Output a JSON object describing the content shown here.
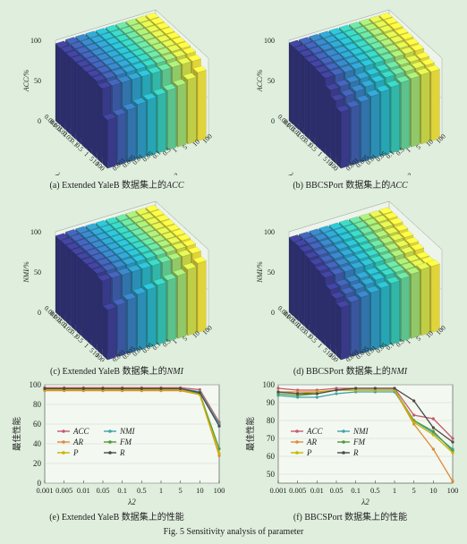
{
  "figure_caption": "Fig. 5    Sensitivity analysis of parameter",
  "panels_3d": [
    {
      "id": "a",
      "caption_prefix": "(a)  Extended YaleB 数据集上的",
      "caption_metric": "ACC",
      "zlabel": "ACC/%"
    },
    {
      "id": "b",
      "caption_prefix": "(b)  BBCSPort 数据集上的",
      "caption_metric": "ACC",
      "zlabel": "ACC/%"
    },
    {
      "id": "c",
      "caption_prefix": "(c)  Extended YaleB 数据集上的",
      "caption_metric": "NMI",
      "zlabel": "NMI/%"
    },
    {
      "id": "d",
      "caption_prefix": "(d)  BBCSPort 数据集上的",
      "caption_metric": "NMI",
      "zlabel": "NMI/%"
    }
  ],
  "panels_2d": [
    {
      "id": "e",
      "caption": "(e)  Extended YaleB 数据集上的性能"
    },
    {
      "id": "f",
      "caption": "(f)  BBCSPort 数据集上的性能"
    }
  ],
  "chart_data": [
    {
      "type": "bar3d",
      "panel": "a",
      "x_label": "λ1",
      "y_label": "λ2",
      "z_label": "ACC/%",
      "x_ticks": [
        "0.001",
        "0.005",
        "0.01",
        "0.05",
        "0.1",
        "0.5",
        "1",
        "5",
        "10",
        "100"
      ],
      "y_ticks": [
        "0.001",
        "0.005",
        "0.01",
        "0.05",
        "0.1",
        "0.5",
        "1",
        "5",
        "10",
        "100"
      ],
      "z_ticks": [
        "0",
        "50",
        "100"
      ],
      "zlim": [
        0,
        100
      ],
      "values": [
        [
          96,
          97,
          97,
          97,
          97,
          97,
          97,
          97,
          97,
          97
        ],
        [
          96,
          97,
          97,
          97,
          97,
          97,
          97,
          97,
          97,
          97
        ],
        [
          96,
          97,
          97,
          97,
          97,
          97,
          97,
          97,
          97,
          97
        ],
        [
          96,
          97,
          97,
          97,
          97,
          97,
          97,
          97,
          97,
          97
        ],
        [
          96,
          97,
          97,
          97,
          97,
          97,
          97,
          97,
          97,
          97
        ],
        [
          96,
          97,
          97,
          97,
          97,
          97,
          97,
          97,
          97,
          97
        ],
        [
          96,
          97,
          97,
          97,
          97,
          97,
          97,
          97,
          97,
          97
        ],
        [
          96,
          96,
          96,
          96,
          96,
          96,
          96,
          96,
          96,
          96
        ],
        [
          93,
          93,
          93,
          93,
          93,
          93,
          93,
          93,
          93,
          93
        ],
        [
          60,
          62,
          65,
          68,
          70,
          72,
          74,
          76,
          80,
          85
        ]
      ]
    },
    {
      "type": "bar3d",
      "panel": "b",
      "x_label": "λ1",
      "y_label": "λ2",
      "z_label": "ACC/%",
      "x_ticks": [
        "0.001",
        "0.005",
        "0.01",
        "0.05",
        "0.1",
        "0.5",
        "1",
        "5",
        "10",
        "100"
      ],
      "y_ticks": [
        "0.001",
        "0.005",
        "0.01",
        "0.05",
        "0.1",
        "0.5",
        "1",
        "5",
        "10",
        "100"
      ],
      "z_ticks": [
        "0",
        "50",
        "100"
      ],
      "zlim": [
        0,
        100
      ],
      "values": [
        [
          97,
          97,
          97,
          97,
          97,
          97,
          97,
          97,
          97,
          97
        ],
        [
          97,
          97,
          97,
          97,
          97,
          97,
          97,
          97,
          97,
          97
        ],
        [
          97,
          97,
          97,
          97,
          97,
          97,
          97,
          97,
          97,
          97
        ],
        [
          96,
          96,
          96,
          96,
          96,
          96,
          96,
          96,
          96,
          96
        ],
        [
          96,
          96,
          96,
          96,
          96,
          96,
          96,
          96,
          96,
          96
        ],
        [
          95,
          95,
          95,
          95,
          95,
          95,
          95,
          95,
          95,
          95
        ],
        [
          94,
          94,
          94,
          94,
          94,
          94,
          94,
          94,
          94,
          94
        ],
        [
          85,
          86,
          87,
          88,
          89,
          90,
          90,
          90,
          90,
          90
        ],
        [
          78,
          80,
          82,
          84,
          86,
          88,
          88,
          88,
          88,
          88
        ],
        [
          70,
          72,
          75,
          78,
          80,
          82,
          84,
          85,
          86,
          86
        ]
      ]
    },
    {
      "type": "bar3d",
      "panel": "c",
      "x_label": "λ1",
      "y_label": "λ2",
      "z_label": "NMI/%",
      "x_ticks": [
        "0.001",
        "0.005",
        "0.01",
        "0.05",
        "0.1",
        "0.5",
        "1",
        "5",
        "10",
        "100"
      ],
      "y_ticks": [
        "0.001",
        "0.005",
        "0.01",
        "0.05",
        "0.1",
        "0.5",
        "1",
        "5",
        "10",
        "100"
      ],
      "z_ticks": [
        "0",
        "50",
        "100"
      ],
      "zlim": [
        0,
        100
      ],
      "values": [
        [
          95,
          96,
          96,
          96,
          96,
          96,
          96,
          96,
          96,
          96
        ],
        [
          95,
          96,
          96,
          96,
          96,
          96,
          96,
          96,
          96,
          96
        ],
        [
          95,
          96,
          96,
          96,
          96,
          96,
          96,
          96,
          96,
          96
        ],
        [
          95,
          96,
          96,
          96,
          96,
          96,
          96,
          96,
          96,
          96
        ],
        [
          95,
          96,
          96,
          96,
          96,
          96,
          96,
          96,
          96,
          96
        ],
        [
          95,
          96,
          96,
          96,
          96,
          96,
          96,
          96,
          96,
          96
        ],
        [
          95,
          96,
          96,
          96,
          96,
          96,
          96,
          96,
          96,
          96
        ],
        [
          95,
          95,
          95,
          95,
          95,
          95,
          95,
          95,
          95,
          95
        ],
        [
          92,
          92,
          92,
          92,
          92,
          92,
          92,
          92,
          92,
          92
        ],
        [
          62,
          64,
          67,
          70,
          72,
          74,
          76,
          78,
          82,
          86
        ]
      ]
    },
    {
      "type": "bar3d",
      "panel": "d",
      "x_label": "λ1",
      "y_label": "λ2",
      "z_label": "NMI/%",
      "x_ticks": [
        "0.001",
        "0.005",
        "0.01",
        "0.05",
        "0.1",
        "0.5",
        "1",
        "5",
        "10",
        "100"
      ],
      "y_ticks": [
        "0.001",
        "0.005",
        "0.01",
        "0.05",
        "0.1",
        "0.5",
        "1",
        "5",
        "10",
        "100"
      ],
      "z_ticks": [
        "0",
        "50",
        "100"
      ],
      "zlim": [
        0,
        100
      ],
      "values": [
        [
          93,
          93,
          93,
          93,
          93,
          93,
          93,
          93,
          93,
          93
        ],
        [
          93,
          93,
          93,
          93,
          93,
          93,
          93,
          93,
          93,
          93
        ],
        [
          92,
          92,
          92,
          92,
          92,
          92,
          92,
          92,
          92,
          92
        ],
        [
          90,
          90,
          90,
          90,
          90,
          90,
          90,
          90,
          90,
          90
        ],
        [
          88,
          88,
          88,
          88,
          88,
          88,
          88,
          88,
          88,
          88
        ],
        [
          86,
          86,
          86,
          86,
          86,
          86,
          86,
          86,
          86,
          86
        ],
        [
          84,
          84,
          84,
          84,
          84,
          84,
          84,
          84,
          84,
          84
        ],
        [
          75,
          76,
          77,
          78,
          79,
          80,
          80,
          80,
          80,
          80
        ],
        [
          70,
          72,
          74,
          76,
          78,
          80,
          80,
          80,
          80,
          80
        ],
        [
          65,
          68,
          70,
          72,
          74,
          76,
          78,
          80,
          82,
          82
        ]
      ]
    },
    {
      "type": "line",
      "panel": "e",
      "x": [
        "0.001",
        "0.005",
        "0.01",
        "0.05",
        "0.1",
        "0.5",
        "1",
        "5",
        "10",
        "100"
      ],
      "ylabel": "最佳性能",
      "xlabel": "λ2",
      "ylim": [
        0,
        100
      ],
      "y_ticks": [
        0,
        20,
        40,
        60,
        80,
        100
      ],
      "legend_placement": "lower-left",
      "series": [
        {
          "name": "ACC",
          "color": "#c85a6e",
          "values": [
            97,
            97,
            97,
            97,
            97,
            97,
            97,
            97,
            95,
            62
          ]
        },
        {
          "name": "NMI",
          "color": "#3fa3a8",
          "values": [
            96,
            96,
            96,
            96,
            96,
            96,
            96,
            96,
            93,
            60
          ]
        },
        {
          "name": "AR",
          "color": "#e08a3a",
          "values": [
            94,
            94,
            94,
            94,
            94,
            94,
            94,
            94,
            90,
            28
          ]
        },
        {
          "name": "FM",
          "color": "#4f9a3a",
          "values": [
            95,
            95,
            95,
            95,
            95,
            95,
            95,
            95,
            91,
            35
          ]
        },
        {
          "name": "P",
          "color": "#c9b300",
          "values": [
            95,
            95,
            95,
            95,
            95,
            95,
            95,
            95,
            90,
            30
          ]
        },
        {
          "name": "R",
          "color": "#4a4a4a",
          "values": [
            96,
            96,
            96,
            96,
            96,
            96,
            96,
            96,
            92,
            58
          ]
        }
      ]
    },
    {
      "type": "line",
      "panel": "f",
      "x": [
        "0.001",
        "0.005",
        "0.01",
        "0.05",
        "0.1",
        "0.5",
        "1",
        "5",
        "10",
        "100"
      ],
      "ylabel": "最佳性能",
      "xlabel": "λ2",
      "ylim": [
        45,
        100
      ],
      "y_ticks": [
        50,
        60,
        70,
        80,
        90,
        100
      ],
      "legend_placement": "lower-left",
      "series": [
        {
          "name": "ACC",
          "color": "#c85a6e",
          "values": [
            98,
            97,
            97,
            98,
            98,
            98,
            98,
            83,
            81,
            70
          ]
        },
        {
          "name": "NMI",
          "color": "#3fa3a8",
          "values": [
            94,
            93,
            93,
            95,
            96,
            96,
            96,
            80,
            73,
            64
          ]
        },
        {
          "name": "AR",
          "color": "#e08a3a",
          "values": [
            96,
            96,
            96,
            97,
            97,
            97,
            97,
            78,
            64,
            46
          ]
        },
        {
          "name": "FM",
          "color": "#4f9a3a",
          "values": [
            95,
            94,
            95,
            97,
            97,
            97,
            97,
            80,
            74,
            63
          ]
        },
        {
          "name": "P",
          "color": "#c9b300",
          "values": [
            96,
            95,
            96,
            97,
            97,
            97,
            97,
            79,
            72,
            62
          ]
        },
        {
          "name": "R",
          "color": "#4a4a4a",
          "values": [
            96,
            95,
            95,
            97,
            98,
            98,
            98,
            91,
            76,
            68
          ]
        }
      ]
    }
  ]
}
